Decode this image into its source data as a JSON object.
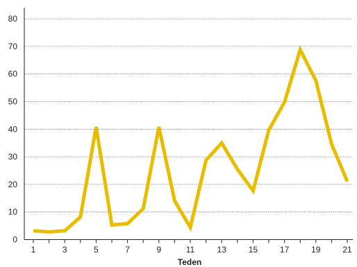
{
  "chart_data": {
    "type": "line",
    "title": "",
    "xlabel": "Teden",
    "ylabel": "",
    "x": [
      1,
      2,
      3,
      4,
      5,
      6,
      7,
      8,
      9,
      10,
      11,
      12,
      13,
      14,
      15,
      16,
      17,
      18,
      19,
      20,
      21
    ],
    "x_tick_labels": [
      "1",
      "3",
      "5",
      "7",
      "9",
      "11",
      "13",
      "15",
      "17",
      "19",
      "21"
    ],
    "xlim": [
      0.5,
      21.5
    ],
    "y_ticks": [
      0,
      10,
      20,
      30,
      40,
      50,
      60,
      70,
      80
    ],
    "ylim": [
      0,
      84
    ],
    "grid": "horizontal-dotted",
    "series": [
      {
        "name": "",
        "color": "#e8bd00",
        "values": [
          3.2,
          2.8,
          3.2,
          8.2,
          40.8,
          5.3,
          5.8,
          11.2,
          40.8,
          14.1,
          4.4,
          28.8,
          35.0,
          25.5,
          17.7,
          39.7,
          49.8,
          68.8,
          57.6,
          34.6,
          21.1
        ]
      }
    ]
  }
}
